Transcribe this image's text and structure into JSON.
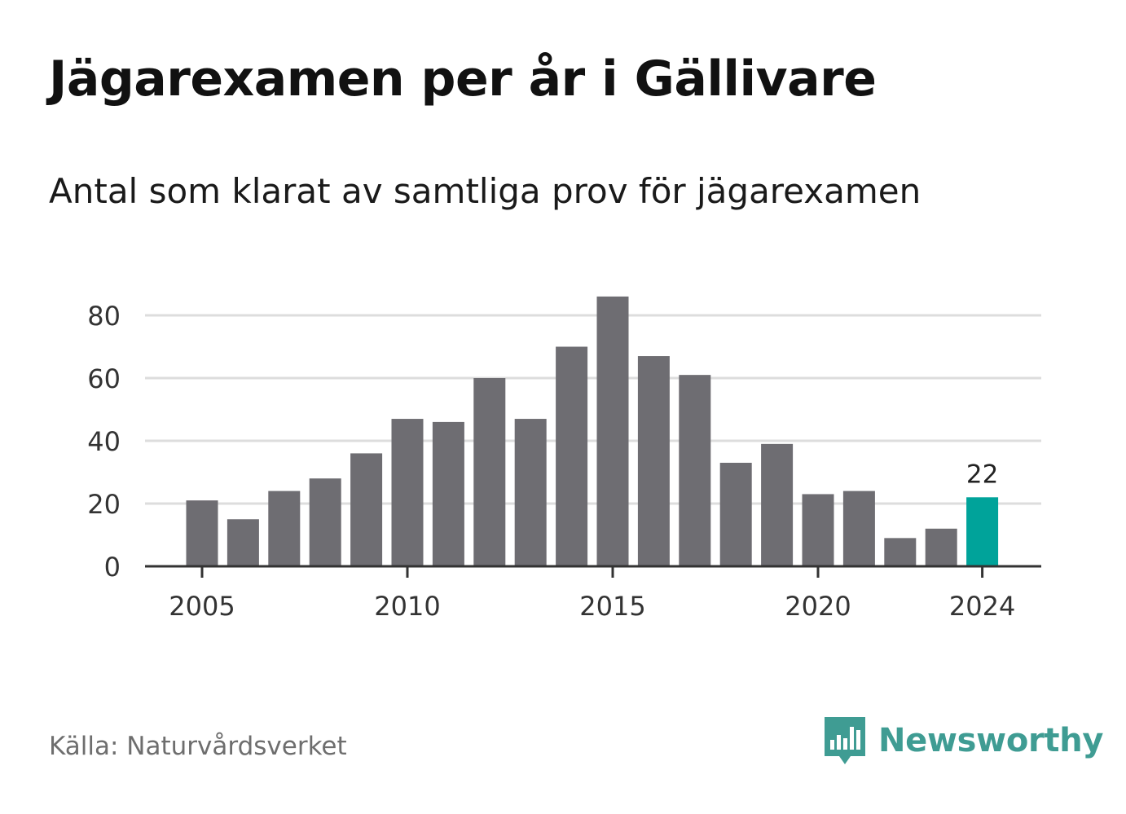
{
  "title": "Jägarexamen per år i Gällivare",
  "subtitle": "Antal som klarat av samtliga prov för jägarexamen",
  "source": "Källa: Naturvårdsverket",
  "brand": {
    "name": "Newsworthy",
    "color": "#3f9c93",
    "icon": "newsworthy-bar-chart-icon"
  },
  "colors": {
    "bar": "#6e6d72",
    "highlight": "#00a39a",
    "grid": "#dddddd",
    "axis": "#333333"
  },
  "chart_data": {
    "type": "bar",
    "x": [
      2005,
      2006,
      2007,
      2008,
      2009,
      2010,
      2011,
      2012,
      2013,
      2014,
      2015,
      2016,
      2017,
      2018,
      2019,
      2020,
      2021,
      2022,
      2023,
      2024
    ],
    "values": [
      21,
      15,
      24,
      28,
      36,
      47,
      46,
      60,
      47,
      70,
      86,
      67,
      61,
      33,
      39,
      23,
      24,
      9,
      12,
      22
    ],
    "xticks": [
      "2005",
      "2010",
      "2015",
      "2020",
      "2024"
    ],
    "yticks": [
      "0",
      "20",
      "40",
      "60",
      "80"
    ],
    "ylim": [
      0,
      90
    ],
    "highlight": {
      "x": 2024,
      "label": "22"
    },
    "grid": true
  }
}
